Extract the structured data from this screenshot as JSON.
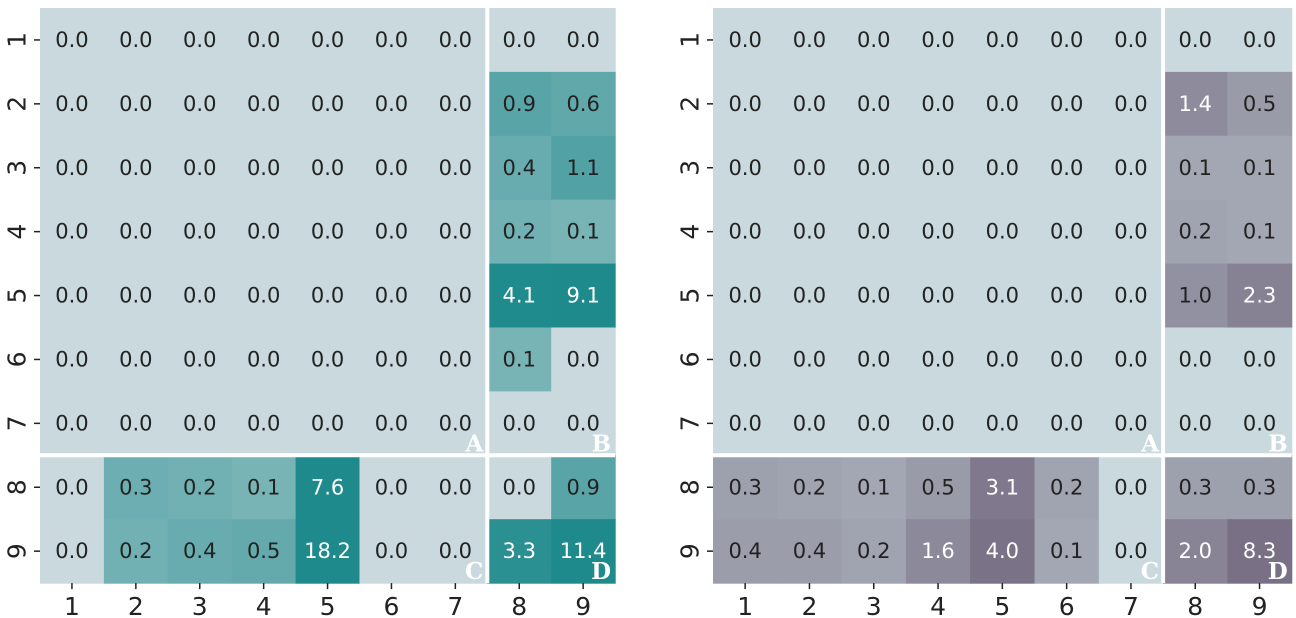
{
  "chart_data": [
    {
      "type": "heatmap",
      "title": "",
      "xlabel": "",
      "ylabel": "",
      "x_tick_labels": [
        "1",
        "2",
        "3",
        "4",
        "5",
        "6",
        "7",
        "8",
        "9"
      ],
      "y_tick_labels": [
        "1",
        "2",
        "3",
        "4",
        "5",
        "6",
        "7",
        "8",
        "9"
      ],
      "values": [
        [
          0.0,
          0.0,
          0.0,
          0.0,
          0.0,
          0.0,
          0.0,
          0.0,
          0.0
        ],
        [
          0.0,
          0.0,
          0.0,
          0.0,
          0.0,
          0.0,
          0.0,
          0.9,
          0.6
        ],
        [
          0.0,
          0.0,
          0.0,
          0.0,
          0.0,
          0.0,
          0.0,
          0.4,
          1.1
        ],
        [
          0.0,
          0.0,
          0.0,
          0.0,
          0.0,
          0.0,
          0.0,
          0.2,
          0.1
        ],
        [
          0.0,
          0.0,
          0.0,
          0.0,
          0.0,
          0.0,
          0.0,
          4.1,
          9.1
        ],
        [
          0.0,
          0.0,
          0.0,
          0.0,
          0.0,
          0.0,
          0.0,
          0.1,
          0.0
        ],
        [
          0.0,
          0.0,
          0.0,
          0.0,
          0.0,
          0.0,
          0.0,
          0.0,
          0.0
        ],
        [
          0.0,
          0.3,
          0.2,
          0.1,
          7.6,
          0.0,
          0.0,
          0.0,
          0.9
        ],
        [
          0.0,
          0.2,
          0.4,
          0.5,
          18.2,
          0.0,
          0.0,
          3.3,
          11.4
        ]
      ],
      "quadrant_labels": [
        "A",
        "B",
        "C",
        "D"
      ],
      "colors": {
        "background": "#c9d9dd",
        "accent": "#1f8a8c"
      }
    },
    {
      "type": "heatmap",
      "title": "",
      "xlabel": "",
      "ylabel": "",
      "x_tick_labels": [
        "1",
        "2",
        "3",
        "4",
        "5",
        "6",
        "7",
        "8",
        "9"
      ],
      "y_tick_labels": [
        "1",
        "2",
        "3",
        "4",
        "5",
        "6",
        "7",
        "8",
        "9"
      ],
      "values": [
        [
          0.0,
          0.0,
          0.0,
          0.0,
          0.0,
          0.0,
          0.0,
          0.0,
          0.0
        ],
        [
          0.0,
          0.0,
          0.0,
          0.0,
          0.0,
          0.0,
          0.0,
          1.4,
          0.5
        ],
        [
          0.0,
          0.0,
          0.0,
          0.0,
          0.0,
          0.0,
          0.0,
          0.1,
          0.1
        ],
        [
          0.0,
          0.0,
          0.0,
          0.0,
          0.0,
          0.0,
          0.0,
          0.2,
          0.1
        ],
        [
          0.0,
          0.0,
          0.0,
          0.0,
          0.0,
          0.0,
          0.0,
          1.0,
          2.3
        ],
        [
          0.0,
          0.0,
          0.0,
          0.0,
          0.0,
          0.0,
          0.0,
          0.0,
          0.0
        ],
        [
          0.0,
          0.0,
          0.0,
          0.0,
          0.0,
          0.0,
          0.0,
          0.0,
          0.0
        ],
        [
          0.3,
          0.2,
          0.1,
          0.5,
          3.1,
          0.2,
          0.0,
          0.3,
          0.3
        ],
        [
          0.4,
          0.4,
          0.2,
          1.6,
          4.0,
          0.1,
          0.0,
          2.0,
          8.3
        ]
      ],
      "quadrant_labels": [
        "A",
        "B",
        "C",
        "D"
      ],
      "colors": {
        "background": "#c9d9dd",
        "accent": "#797085"
      }
    }
  ]
}
